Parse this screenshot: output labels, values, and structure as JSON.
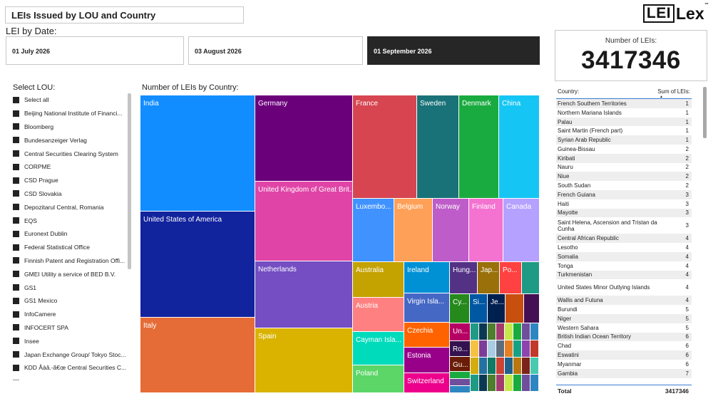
{
  "header": {
    "title": "LEIs Issued by LOU and Country",
    "logo_box_text": "LEI",
    "logo_rest_text": "Lex",
    "logo_tm": "™"
  },
  "date_filter": {
    "heading": "LEI by Date:",
    "options": [
      "01 July 2026",
      "03 August 2026",
      "01 September 2026"
    ],
    "selected": "01 September 2026"
  },
  "card": {
    "label": "Number of LEIs:",
    "value": "3417346"
  },
  "lou": {
    "heading": "Select LOU:",
    "items": [
      "Select all",
      "Beijing National Institute of Financi...",
      "Bloomberg",
      "Bundesanzeiger Verlag",
      "Central Securities Clearing System",
      "CORPME",
      "CSD Prague",
      "CSD Slovakia",
      "Depozitarul Central, Romania",
      "EQS",
      "Euronext Dublin",
      "Federal Statistical Office",
      "Finnish Patent and Registration Offi...",
      "GMEI Utility a service of BED B.V.",
      "GS1",
      "GS1 Mexico",
      "InfoCamere",
      "INFOCERT SPA",
      "Insee",
      "Japan Exchange Group/ Tokyo Stoc...",
      "KDD Åàâ.-ã€œ Central Securities C..."
    ],
    "more": "---"
  },
  "treemap": {
    "heading": "Number of LEIs by Country:",
    "labels": {
      "india": "India",
      "usa": "United States of America",
      "italy": "Italy",
      "germany": "Germany",
      "uk": "United Kingdom of Great Brit...",
      "netherlands": "Netherlands",
      "spain": "Spain",
      "france": "France",
      "sweden": "Sweden",
      "denmark": "Denmark",
      "china": "China",
      "luxembourg": "Luxembo...",
      "belgium": "Belgium",
      "norway": "Norway",
      "finland": "Finland",
      "canada": "Canada",
      "australia": "Australia",
      "austria": "Austria",
      "cayman": "Cayman Isla...",
      "poland": "Poland",
      "ireland": "Ireland",
      "virgin": "Virgin Isla...",
      "czechia": "Czechia",
      "estonia": "Estonia",
      "switzerland": "Switzerland",
      "hungary": "Hung...",
      "japan": "Jap...",
      "portugal": "Po...",
      "cyprus": "Cy...",
      "singapore": "Si...",
      "jersey": "Je...",
      "ukraine": "Un...",
      "romania": "Ro...",
      "guernsey": "Gu..."
    },
    "colors": {
      "india": "#118DFF",
      "usa": "#12239E",
      "italy": "#E66C37",
      "germany": "#6B007B",
      "uk": "#E044A7",
      "netherlands": "#744EC2",
      "spain": "#D9B300",
      "france": "#D64550",
      "sweden": "#197278",
      "denmark": "#1AAB40",
      "china": "#15C6F4",
      "luxembourg": "#4092FF",
      "belgium": "#FFA058",
      "norway": "#BE5DC9",
      "finland": "#F472D0",
      "canada": "#B5A1FF",
      "australia": "#C4A200",
      "austria": "#FF8080",
      "cayman": "#00DBBC",
      "poland": "#5BD667",
      "ireland": "#0091D5",
      "virgin": "#4668C5",
      "czechia": "#FF6300",
      "estonia": "#99008A",
      "switzerland": "#EC008C",
      "hungary": "#533285",
      "japan": "#99700A",
      "portugal": "#FF4141",
      "teal_small": "#1F9A85",
      "cyprus": "#25891C",
      "singapore": "#0057A2",
      "jersey": "#002050",
      "brown_small": "#C94F0F",
      "purple_small": "#450F54",
      "ukraine": "#B60064",
      "romania": "#34124F",
      "guernsey": "#6A1C06"
    }
  },
  "country_table": {
    "col_country": "Country:",
    "col_sum": "Sum of LEIs:",
    "rows": [
      [
        "French Southern Territories",
        "1"
      ],
      [
        "Northern Mariana Islands",
        "1"
      ],
      [
        "Palau",
        "1"
      ],
      [
        "Saint Martin (French part)",
        "1"
      ],
      [
        "Syrian Arab Republic",
        "1"
      ],
      [
        "Guinea-Bissau",
        "2"
      ],
      [
        "Kiribati",
        "2"
      ],
      [
        "Nauru",
        "2"
      ],
      [
        "Niue",
        "2"
      ],
      [
        "South Sudan",
        "2"
      ],
      [
        "French Guiana",
        "3"
      ],
      [
        "Haiti",
        "3"
      ],
      [
        "Mayotte",
        "3"
      ],
      [
        "Saint Helena, Ascension and Tristan da Cunha",
        "3"
      ],
      [
        "Central African Republic",
        "4"
      ],
      [
        "Lesotho",
        "4"
      ],
      [
        "Somalia",
        "4"
      ],
      [
        "Tonga",
        "4"
      ],
      [
        "Turkmenistan",
        "4"
      ],
      [
        "United States Minor Outlying Islands",
        "4"
      ],
      [
        "Wallis and Futuna",
        "4"
      ],
      [
        "Burundi",
        "5"
      ],
      [
        "Niger",
        "5"
      ],
      [
        "Western Sahara",
        "5"
      ],
      [
        "British Indian Ocean Territory",
        "6"
      ],
      [
        "Chad",
        "6"
      ],
      [
        "Eswatini",
        "6"
      ],
      [
        "Myanmar",
        "6"
      ],
      [
        "Gambia",
        "7"
      ]
    ],
    "total_label": "Total",
    "total_value": "3417346"
  }
}
